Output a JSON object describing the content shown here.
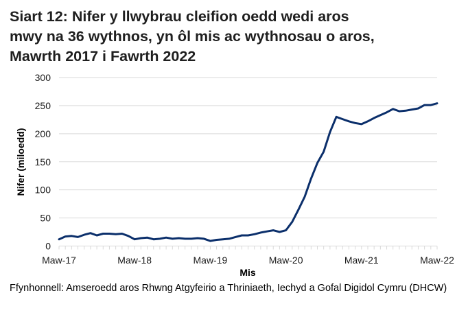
{
  "title_lines": [
    "Siart 12: Nifer y llwybrau cleifion oedd wedi aros",
    "mwy na 36 wythnos, yn ôl mis ac wythnosau o aros,",
    "Mawrth 2017 i Fawrth 2022"
  ],
  "source": "Ffynhonnell: Amseroedd aros Rhwng Atgyfeirio a Thriniaeth, Iechyd a Gofal Digidol Cymru (DHCW)",
  "colors": {
    "line": "#0b2f6b",
    "grid": "#d9d9d9",
    "axis": "#d9d9d9"
  },
  "chart_data": {
    "type": "line",
    "title": "Siart 12: Nifer y llwybrau cleifion oedd wedi aros mwy na 36 wythnos, yn ôl mis ac wythnosau o aros, Mawrth 2017 i Fawrth 2022",
    "xlabel": "Mis",
    "ylabel": "Nifer (miloedd)",
    "ylim": [
      0,
      300
    ],
    "yticks": [
      0,
      50,
      100,
      150,
      200,
      250,
      300
    ],
    "xtick_labels": [
      "Maw-17",
      "Maw-18",
      "Maw-19",
      "Maw-20",
      "Maw-21",
      "Maw-22"
    ],
    "xtick_label_indices": [
      0,
      12,
      24,
      36,
      48,
      60
    ],
    "grid": true,
    "legend": null,
    "x": [
      "Maw-17",
      "Ebr-17",
      "Mai-17",
      "Meh-17",
      "Gor-17",
      "Aws-17",
      "Med-17",
      "Hyd-17",
      "Tach-17",
      "Rhag-17",
      "Ion-18",
      "Chw-18",
      "Maw-18",
      "Ebr-18",
      "Mai-18",
      "Meh-18",
      "Gor-18",
      "Aws-18",
      "Med-18",
      "Hyd-18",
      "Tach-18",
      "Rhag-18",
      "Ion-19",
      "Chw-19",
      "Maw-19",
      "Ebr-19",
      "Mai-19",
      "Meh-19",
      "Gor-19",
      "Aws-19",
      "Med-19",
      "Hyd-19",
      "Tach-19",
      "Rhag-19",
      "Ion-20",
      "Chw-20",
      "Maw-20",
      "Ebr-20",
      "Mai-20",
      "Meh-20",
      "Gor-20",
      "Aws-20",
      "Med-20",
      "Hyd-20",
      "Tach-20",
      "Rhag-20",
      "Ion-21",
      "Chw-21",
      "Maw-21",
      "Ebr-21",
      "Mai-21",
      "Meh-21",
      "Gor-21",
      "Aws-21",
      "Med-21",
      "Hyd-21",
      "Tach-21",
      "Rhag-21",
      "Ion-22",
      "Chw-22",
      "Maw-22"
    ],
    "series": [
      {
        "name": "Nifer (miloedd)",
        "values": [
          12,
          17,
          18,
          16,
          20,
          23,
          19,
          22,
          22,
          21,
          22,
          18,
          12,
          14,
          15,
          12,
          13,
          15,
          13,
          14,
          13,
          13,
          14,
          13,
          9,
          11,
          12,
          13,
          16,
          19,
          19,
          21,
          24,
          26,
          28,
          25,
          28,
          43,
          65,
          88,
          120,
          148,
          168,
          203,
          230,
          226,
          222,
          219,
          217,
          222,
          228,
          233,
          238,
          244,
          240,
          241,
          243,
          245,
          251,
          251,
          254
        ]
      }
    ]
  }
}
